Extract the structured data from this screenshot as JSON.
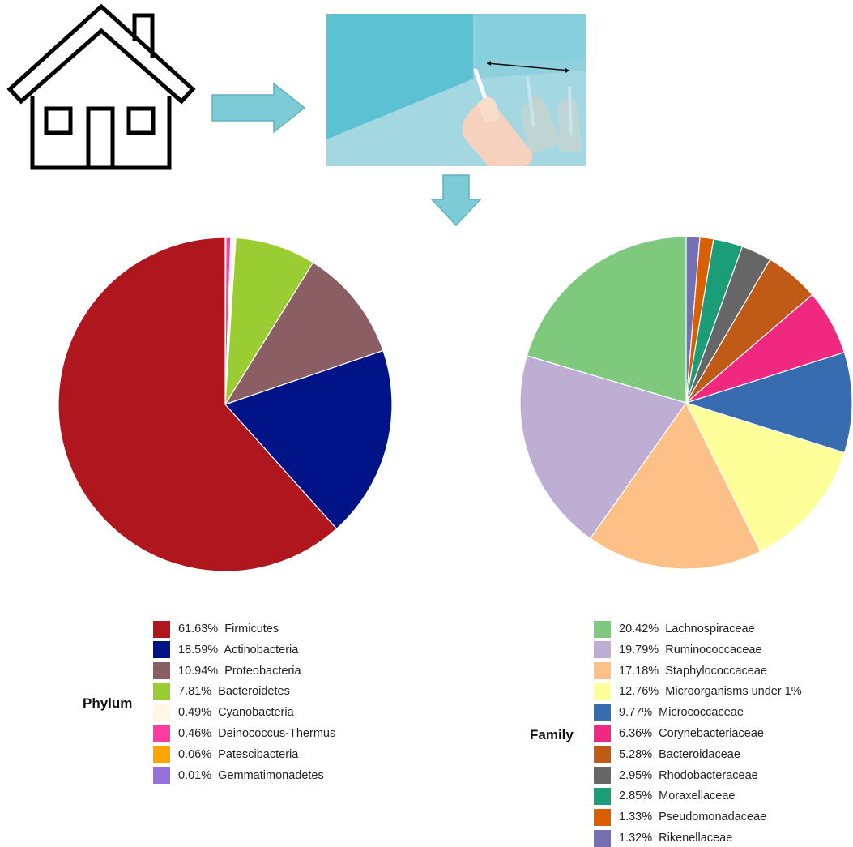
{
  "chart_data": [
    {
      "type": "pie",
      "legend_title": "Phylum",
      "labels": [
        "Firmicutes",
        "Actinobacteria",
        "Proteobacteria",
        "Bacteroidetes",
        "Cyanobacteria",
        "Deinococcus-Thermus",
        "Patescibacteria",
        "Gemmatimonadetes"
      ],
      "values": [
        61.63,
        18.59,
        10.94,
        7.81,
        0.49,
        0.46,
        0.06,
        0.01
      ],
      "value_labels": [
        "61.63%",
        "18.59%",
        "10.94%",
        "7.81%",
        "0.49%",
        "0.46%",
        "0.06%",
        "0.01%"
      ],
      "colors": [
        "#b0161e",
        "#001487",
        "#8b5e64",
        "#9acd32",
        "#fff8e5",
        "#ff3ca0",
        "#ffa500",
        "#9370db"
      ],
      "slice_order": [
        "Gemmatimonadetes",
        "Patescibacteria",
        "Deinococcus-Thermus",
        "Cyanobacteria",
        "Bacteroidetes",
        "Proteobacteria",
        "Actinobacteria",
        "Firmicutes"
      ],
      "start_angle_deg": 0,
      "direction": "clockwise",
      "legend_position": "bottom"
    },
    {
      "type": "pie",
      "legend_title": "Family",
      "labels": [
        "Lachnospiraceae",
        "Ruminococcaceae",
        "Staphylococcaceae",
        "Microorganisms under 1%",
        "Micrococcaceae",
        "Corynebacteriaceae",
        "Bacteroidaceae",
        "Rhodobacteraceae",
        "Moraxellaceae",
        "Pseudomonadaceae",
        "Rikenellaceae"
      ],
      "values": [
        20.42,
        19.79,
        17.18,
        12.76,
        9.77,
        6.36,
        5.28,
        2.95,
        2.85,
        1.33,
        1.32
      ],
      "value_labels": [
        "20.42%",
        "19.79%",
        "17.18%",
        "12.76%",
        "9.77%",
        "6.36%",
        "5.28%",
        "2.95%",
        "2.85%",
        "1.33%",
        "1.32%"
      ],
      "colors": [
        "#7fc97f",
        "#beaed4",
        "#fdc086",
        "#ffff99",
        "#386cb0",
        "#f0287f",
        "#bf5b17",
        "#666666",
        "#1b9e77",
        "#d95f02",
        "#7570b3"
      ],
      "slice_order": [
        "Rikenellaceae",
        "Pseudomonadaceae",
        "Moraxellaceae",
        "Rhodobacteraceae",
        "Bacteroidaceae",
        "Corynebacteriaceae",
        "Micrococcaceae",
        "Microorganisms under 1%",
        "Staphylococcaceae",
        "Ruminococcaceae",
        "Lachnospiraceae"
      ],
      "start_angle_deg": 0,
      "direction": "clockwise",
      "legend_position": "bottom"
    }
  ],
  "illustration": {
    "house_icon": "house-icon",
    "arrow_right_icon": "arrow-right-icon",
    "arrow_down_icon": "arrow-down-icon",
    "swab_panel": "swab-sampling-illustration",
    "arrow_color": "#79c7d3",
    "panel_color": "#8fd0de"
  }
}
